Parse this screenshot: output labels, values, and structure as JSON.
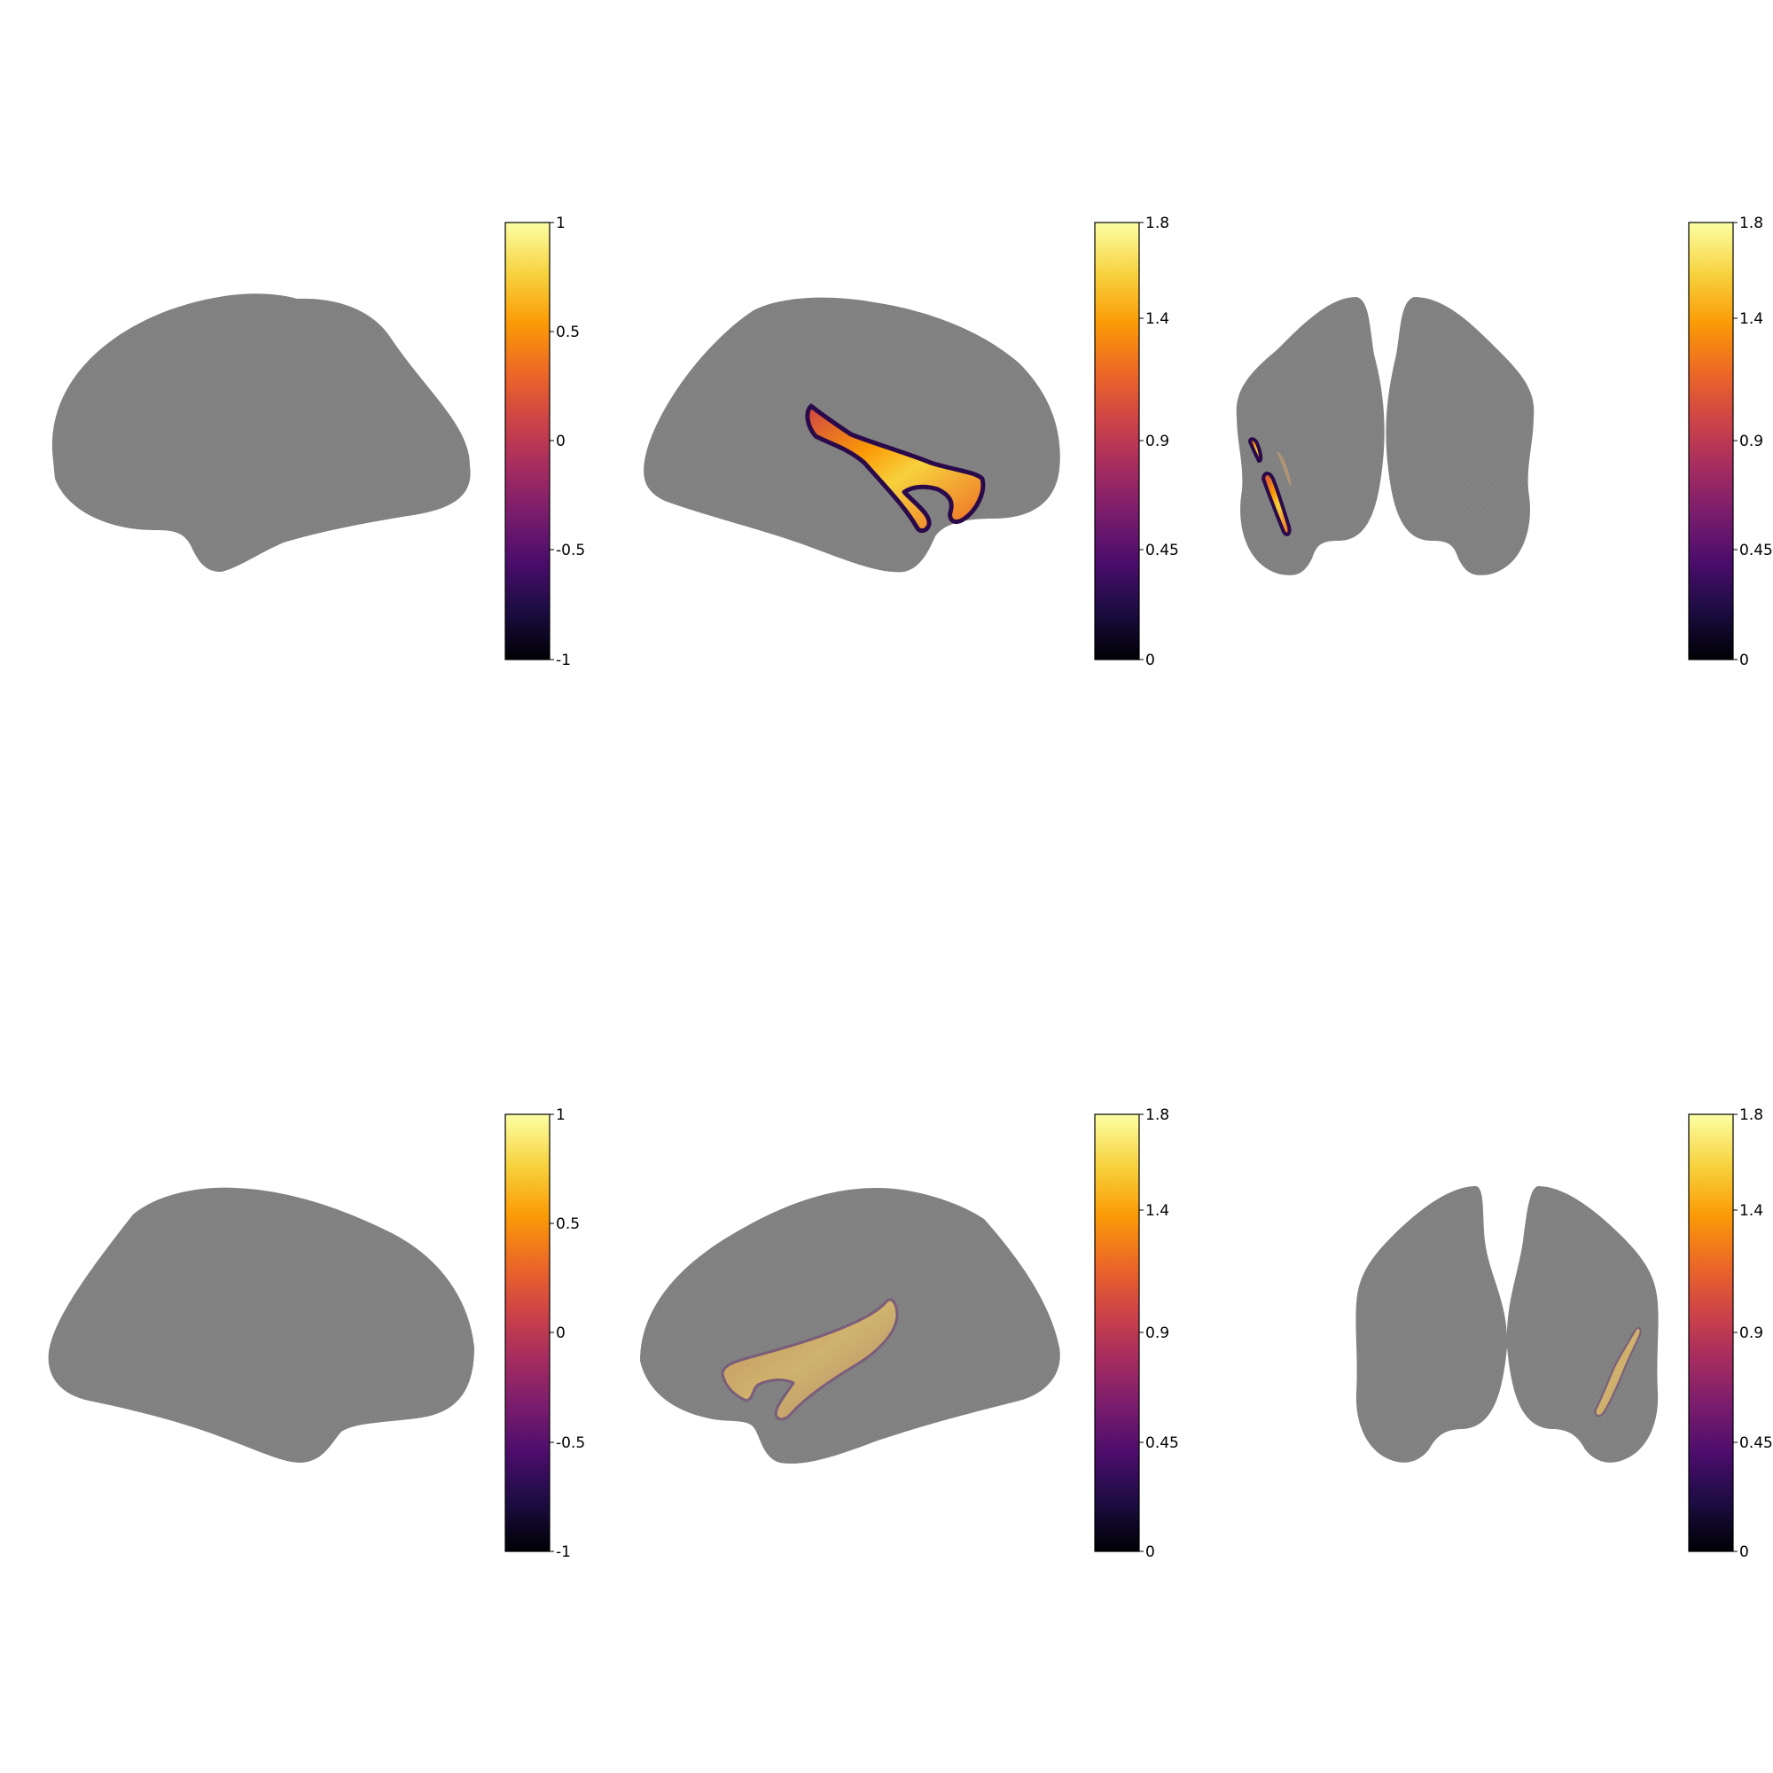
{
  "colors": {
    "background": "#ffffff",
    "surface": "#808080",
    "colormap": "inferno",
    "colormap_stops": [
      "#000004",
      "#1b0c41",
      "#4a0c6b",
      "#781c6d",
      "#a52c60",
      "#cf4446",
      "#ed6925",
      "#fb9b06",
      "#f7d13d",
      "#fcffa4"
    ]
  },
  "panels": [
    {
      "row": 1,
      "col": 1,
      "view": "lateral-left",
      "overlay": "none",
      "colorbar_ticks": [
        "1",
        "0.5",
        "0",
        "-0.5",
        "-1"
      ]
    },
    {
      "row": 1,
      "col": 2,
      "view": "lateral-right",
      "overlay": "full-opacity",
      "colorbar_ticks": [
        "1.8",
        "1.4",
        "0.9",
        "0.45",
        "0"
      ]
    },
    {
      "row": 1,
      "col": 3,
      "view": "posterior",
      "overlay": "left-hemisphere",
      "colorbar_ticks": [
        "1.8",
        "1.4",
        "0.9",
        "0.45",
        "0"
      ]
    },
    {
      "row": 2,
      "col": 1,
      "view": "medial-left",
      "overlay": "none",
      "colorbar_ticks": [
        "1",
        "0.5",
        "0",
        "-0.5",
        "-1"
      ]
    },
    {
      "row": 2,
      "col": 2,
      "view": "medial-right",
      "overlay": "faint",
      "colorbar_ticks": [
        "1.8",
        "1.4",
        "0.9",
        "0.45",
        "0"
      ]
    },
    {
      "row": 2,
      "col": 3,
      "view": "anterior",
      "overlay": "right-hemisphere-faint",
      "colorbar_ticks": [
        "1.8",
        "1.4",
        "0.9",
        "0.45",
        "0"
      ]
    }
  ]
}
